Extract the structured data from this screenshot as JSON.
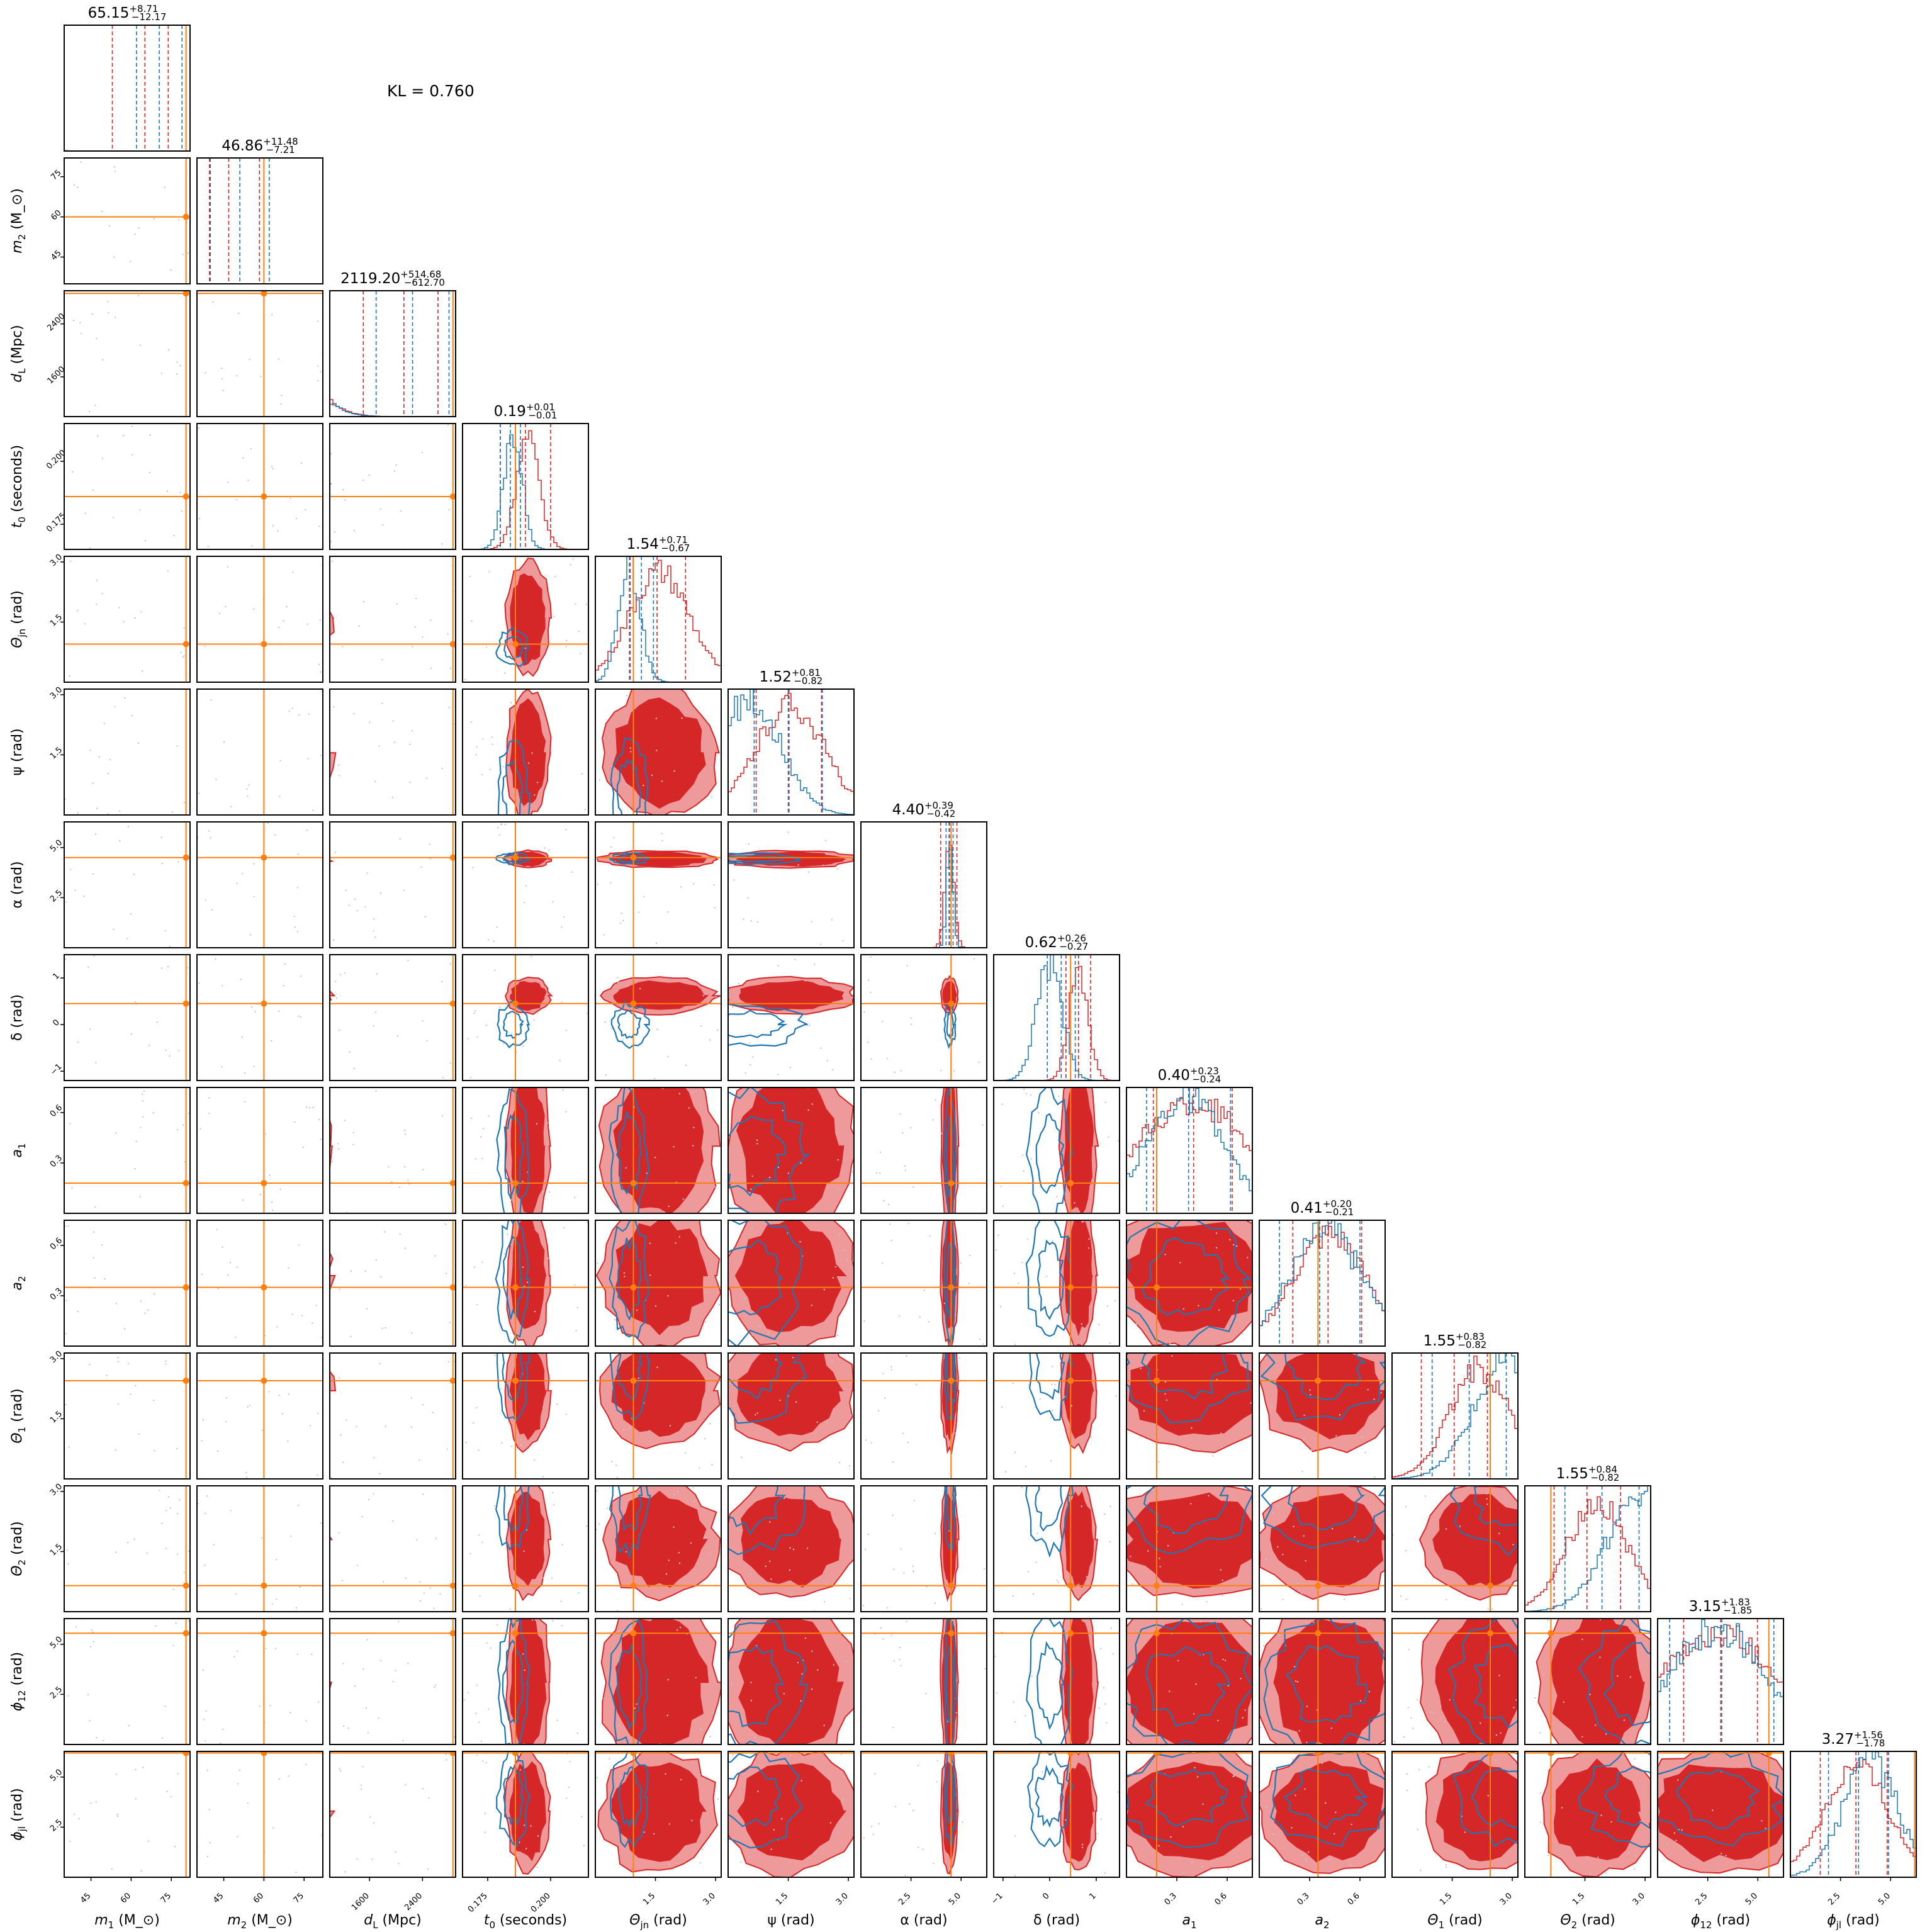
{
  "annotation": "KL = 0.760",
  "colors": {
    "posterior_a": "#d62728",
    "posterior_a_light": "#ee9a9a",
    "posterior_b": "#1f77b4",
    "truth": "#ff7f0e",
    "scatter": "#bcc7d6"
  },
  "chart_data": {
    "type": "corner",
    "series": [
      {
        "name": "",
        "color": "#d62728"
      },
      {
        "name": "",
        "color": "#1f77b4"
      }
    ],
    "parameters": [
      {
        "key": "m1",
        "label": "m_1 (M_⊙)",
        "range": [
          35,
          82
        ],
        "ticks": [
          45,
          60,
          75
        ],
        "tick_labels": [
          "45",
          "60",
          "75"
        ],
        "median": 65.15,
        "plus": "+8.71",
        "minus": "−12.17",
        "title": "65.15",
        "truth": 80.5,
        "blue_q": [
          62,
          79
        ],
        "blue_peak": 0.68,
        "red_peak": 0.62,
        "red_sd": 10.5
      },
      {
        "key": "m2",
        "label": "m_2 (M_⊙)",
        "range": [
          35,
          82
        ],
        "ticks": [
          45,
          60,
          75
        ],
        "tick_labels": [
          "45",
          "60",
          "75"
        ],
        "median": 46.86,
        "plus": "+11.48",
        "minus": "−7.21",
        "title": "46.86",
        "truth": 60,
        "blue_q": [
          40,
          62
        ],
        "blue_peak": 0.52,
        "red_peak": 0.38,
        "red_sd": 9.5
      },
      {
        "key": "dL",
        "label": "d_L (Mpc)",
        "range": [
          1000,
          2900
        ],
        "ticks": [
          1600,
          2400
        ],
        "tick_labels": [
          "1600",
          "2400"
        ],
        "median": 2119.2,
        "plus": "+514.68",
        "minus": "−612.70",
        "title": "2119.20",
        "truth": 2860,
        "blue_q": [
          1700,
          2800
        ],
        "blue_peak": 0.72,
        "red_peak": 0.85,
        "red_sd": 520
      },
      {
        "key": "t0",
        "label": "t_0 (seconds)",
        "range": [
          0.165,
          0.215
        ],
        "ticks": [
          0.175,
          0.2
        ],
        "tick_labels": [
          "0.175",
          "0.200"
        ],
        "median": 0.19,
        "plus": "+0.01",
        "minus": "−0.01",
        "title": "0.19",
        "truth": 0.186,
        "blue_q": [
          0.18,
          0.188
        ],
        "blue_peak": 0.185,
        "red_peak": 0.191,
        "red_sd": 0.0045
      },
      {
        "key": "theta_jn",
        "label": "Θ_jn (rad)",
        "range": [
          0,
          3.14
        ],
        "ticks": [
          1.5,
          3.0
        ],
        "tick_labels": [
          "1.5",
          "3.0"
        ],
        "median": 1.54,
        "plus": "+0.71",
        "minus": "−0.67",
        "title": "1.54",
        "truth": 0.95,
        "blue_q": [
          0.85,
          1.45
        ],
        "blue_peak": 0.85,
        "red_peak": 1.6,
        "red_sd": 0.75
      },
      {
        "key": "psi",
        "label": "ψ (rad)",
        "range": [
          0,
          3.14
        ],
        "ticks": [
          1.5,
          3.0
        ],
        "tick_labels": [
          "1.5",
          "3.0"
        ],
        "median": 1.52,
        "plus": "+0.81",
        "minus": "−0.82",
        "title": "1.52",
        "truth": null,
        "blue_q": [
          0.65,
          2.35
        ],
        "blue_peak": 0.55,
        "red_peak": 1.55,
        "red_sd": 0.85
      },
      {
        "key": "alpha",
        "label": "α (rad)",
        "range": [
          0,
          6.28
        ],
        "ticks": [
          2.5,
          5.0
        ],
        "tick_labels": [
          "2.5",
          "5.0"
        ],
        "median": 4.4,
        "plus": "+0.39",
        "minus": "−0.42",
        "title": "4.40",
        "truth": 4.5,
        "blue_q": [
          4.25,
          4.6
        ],
        "blue_peak": 4.45,
        "red_peak": 4.42,
        "red_sd": 0.22
      },
      {
        "key": "delta",
        "label": "δ (rad)",
        "range": [
          -1.2,
          1.5
        ],
        "ticks": [
          -1,
          0,
          1
        ],
        "tick_labels": [
          "−1",
          "0",
          "1"
        ],
        "median": 0.62,
        "plus": "+0.26",
        "minus": "−0.27",
        "title": "0.62",
        "truth": 0.45,
        "blue_q": [
          -0.05,
          0.55
        ],
        "blue_peak": 0.0,
        "red_peak": 0.62,
        "red_sd": 0.2
      },
      {
        "key": "a1",
        "label": "a_1",
        "range": [
          0,
          0.75
        ],
        "ticks": [
          0.3,
          0.6
        ],
        "tick_labels": [
          "0.3",
          "0.6"
        ],
        "median": 0.4,
        "plus": "+0.23",
        "minus": "−0.24",
        "title": "0.40",
        "truth": 0.18,
        "blue_q": [
          0.12,
          0.62
        ],
        "blue_peak": 0.35,
        "red_peak": 0.4,
        "red_sd": 0.35
      },
      {
        "key": "a2",
        "label": "a_2",
        "range": [
          0,
          0.75
        ],
        "ticks": [
          0.3,
          0.6
        ],
        "tick_labels": [
          "0.3",
          "0.6"
        ],
        "median": 0.41,
        "plus": "+0.20",
        "minus": "−0.21",
        "title": "0.41",
        "truth": 0.35,
        "blue_q": [
          0.12,
          0.6
        ],
        "blue_peak": 0.4,
        "red_peak": 0.42,
        "red_sd": 0.22
      },
      {
        "key": "theta1",
        "label": "Θ_1 (rad)",
        "range": [
          0,
          3.14
        ],
        "ticks": [
          1.5,
          3.0
        ],
        "tick_labels": [
          "1.5",
          "3.0"
        ],
        "median": 1.55,
        "plus": "+0.83",
        "minus": "−0.82",
        "title": "1.55",
        "truth": 2.45,
        "blue_q": [
          1.0,
          2.85
        ],
        "blue_peak": 2.9,
        "red_peak": 2.2,
        "red_sd": 0.75
      },
      {
        "key": "theta2",
        "label": "Θ_2 (rad)",
        "range": [
          0,
          3.14
        ],
        "ticks": [
          1.5,
          3.0
        ],
        "tick_labels": [
          "1.5",
          "3.0"
        ],
        "median": 1.55,
        "plus": "+0.84",
        "minus": "−0.82",
        "title": "1.55",
        "truth": 0.65,
        "blue_q": [
          1.0,
          2.85
        ],
        "blue_peak": 2.9,
        "red_peak": 1.8,
        "red_sd": 0.75
      },
      {
        "key": "phi12",
        "label": "ϕ_12 (rad)",
        "range": [
          0,
          6.28
        ],
        "ticks": [
          2.5,
          5.0
        ],
        "tick_labels": [
          "2.5",
          "5.0"
        ],
        "median": 3.15,
        "plus": "+1.83",
        "minus": "−1.85",
        "title": "3.15",
        "truth": 5.55,
        "blue_q": [
          0.6,
          5.8
        ],
        "blue_peak": 3.0,
        "red_peak": 3.1,
        "red_sd": 3.0
      },
      {
        "key": "phijl",
        "label": "ϕ_jl (rad)",
        "range": [
          0,
          6.28
        ],
        "ticks": [
          2.5,
          5.0
        ],
        "tick_labels": [
          "2.5",
          "5.0"
        ],
        "median": 3.27,
        "plus": "+1.56",
        "minus": "−1.78",
        "title": "3.27",
        "truth": 6.2,
        "blue_q": [
          1.9,
          4.9
        ],
        "blue_peak": 4.0,
        "red_peak": 3.3,
        "red_sd": 1.6
      }
    ]
  }
}
